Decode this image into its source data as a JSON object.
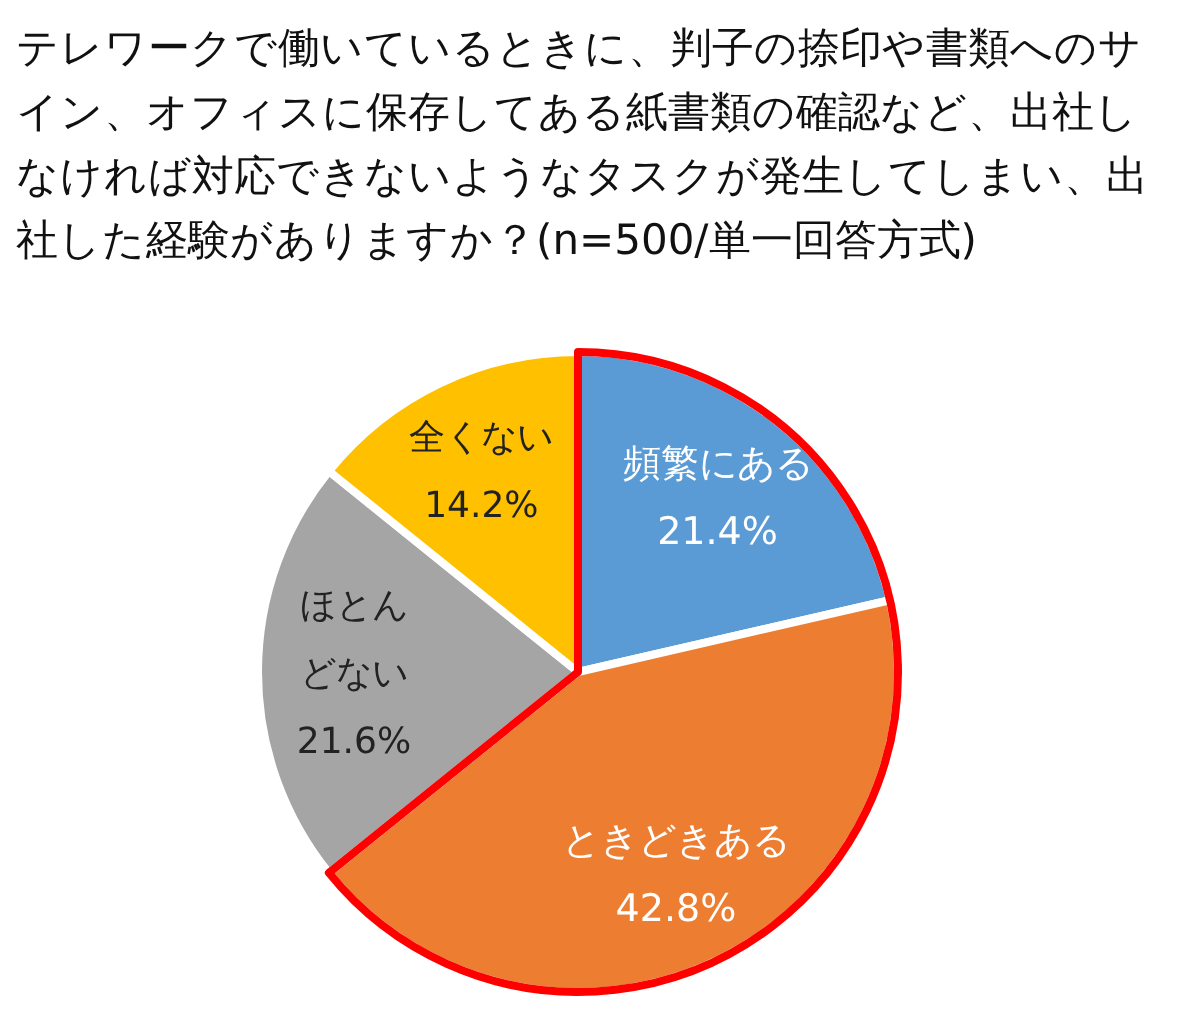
{
  "chart_data": {
    "type": "pie",
    "title": "テレワークで働いているときに、判子の捺印や書類へのサイン、オフィスに保存してある紙書類の確認など、出社しなければ対応できないようなタスクが発生してしまい、出社した経験がありますか？(n=500/単一回答方式)",
    "categories": [
      "頻繁にある",
      "ときどきある",
      "ほとんどない",
      "全くない"
    ],
    "values": [
      21.4,
      42.8,
      21.6,
      14.2
    ],
    "colors": [
      "#5b9bd5",
      "#ed7d31",
      "#a5a5a5",
      "#ffc000"
    ],
    "value_labels": [
      "21.4%",
      "42.8%",
      "21.6%",
      "14.2%"
    ]
  }
}
